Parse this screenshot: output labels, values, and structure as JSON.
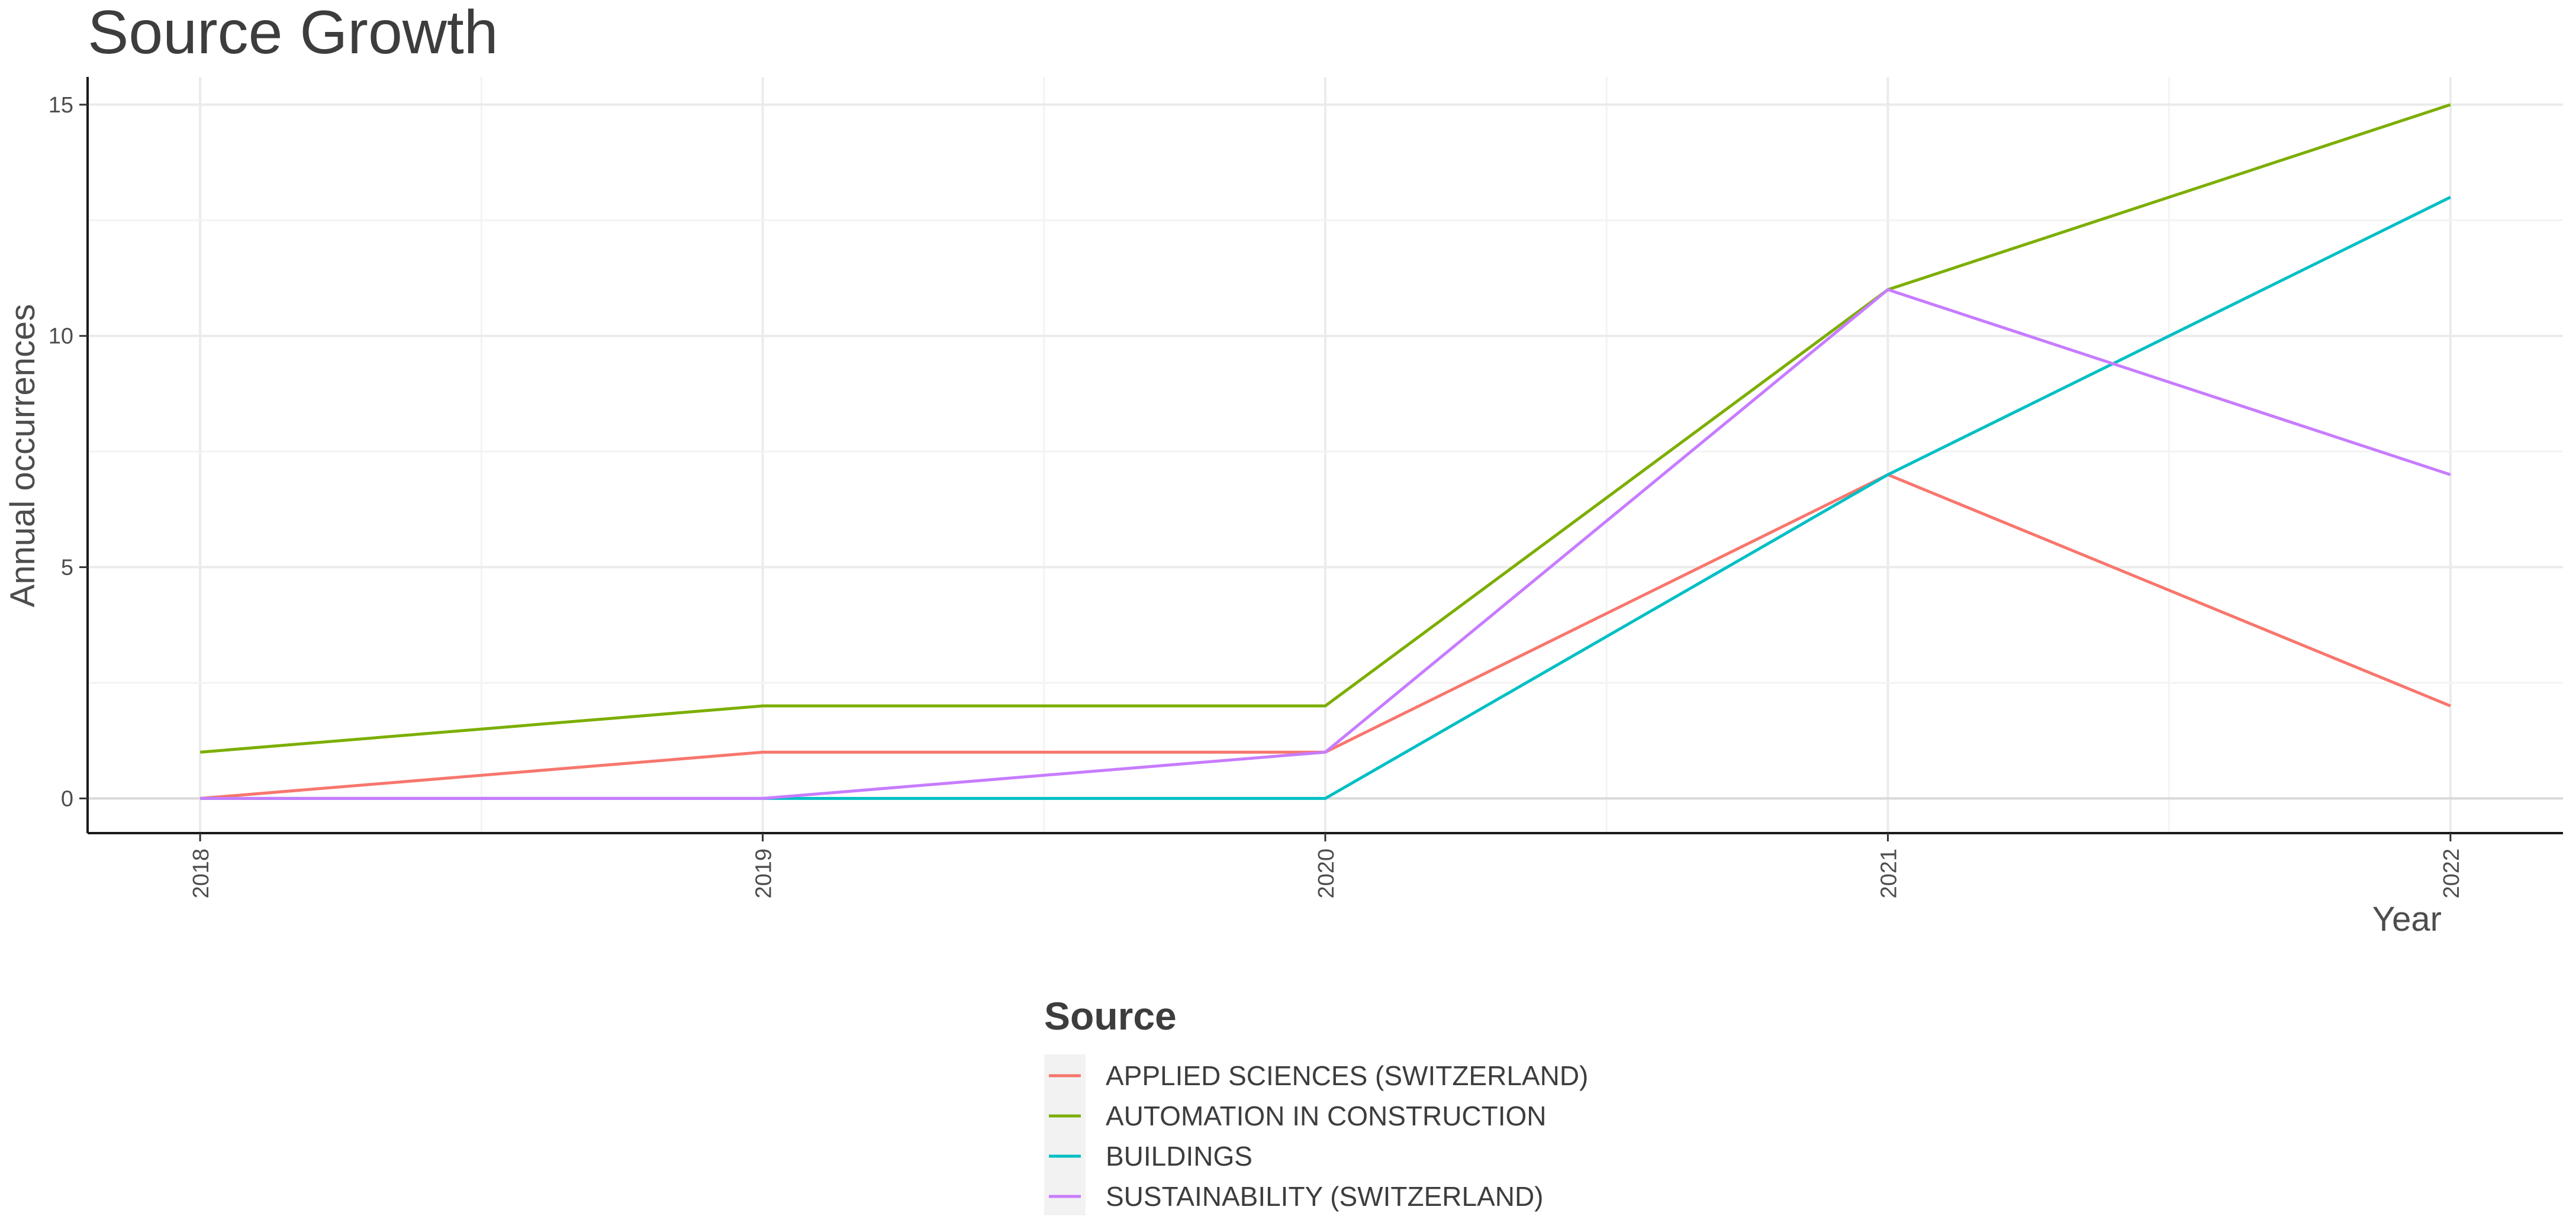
{
  "chart_data": {
    "type": "line",
    "title": "Source Growth",
    "xlabel": "Year",
    "ylabel": "Annual occurrences",
    "x": [
      2018,
      2019,
      2020,
      2021,
      2022
    ],
    "x_tick_labels": [
      "2018",
      "2019",
      "2020",
      "2021",
      "2022"
    ],
    "y_ticks": [
      0,
      5,
      10,
      15
    ],
    "y_tick_labels": [
      "0",
      "5",
      "10",
      "15"
    ],
    "xlim": [
      2017.8,
      2022.2
    ],
    "ylim": [
      -0.75,
      15.6
    ],
    "grid": true,
    "legend": {
      "title": "Source",
      "position": "bottom"
    },
    "series": [
      {
        "name": "APPLIED SCIENCES (SWITZERLAND)",
        "color": "#F8766D",
        "values": [
          0,
          1,
          1,
          7,
          2
        ]
      },
      {
        "name": "AUTOMATION IN CONSTRUCTION",
        "color": "#7CAE00",
        "values": [
          1,
          2,
          2,
          11,
          15
        ]
      },
      {
        "name": "BUILDINGS",
        "color": "#00BFC4",
        "values": [
          0,
          0,
          0,
          7,
          13
        ]
      },
      {
        "name": "SUSTAINABILITY (SWITZERLAND)",
        "color": "#C77CFF",
        "values": [
          0,
          0,
          1,
          11,
          7
        ]
      }
    ]
  }
}
